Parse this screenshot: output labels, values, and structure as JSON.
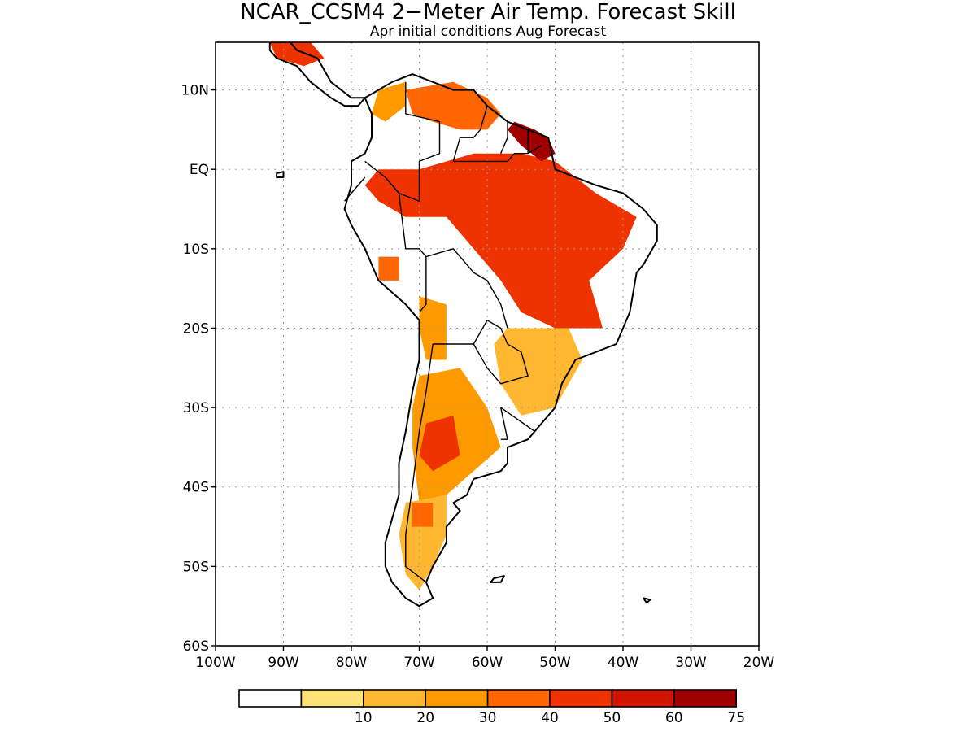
{
  "title": "NCAR_CCSM4 2−Meter Air Temp. Forecast Skill",
  "subtitle": "Apr initial conditions   Aug Forecast",
  "map": {
    "lon_range": [
      -100,
      -20
    ],
    "lat_range": [
      -60,
      16
    ],
    "lat_ticks": [
      {
        "value": 10,
        "label": "10N"
      },
      {
        "value": 0,
        "label": "EQ"
      },
      {
        "value": -10,
        "label": "10S"
      },
      {
        "value": -20,
        "label": "20S"
      },
      {
        "value": -30,
        "label": "30S"
      },
      {
        "value": -40,
        "label": "40S"
      },
      {
        "value": -50,
        "label": "50S"
      },
      {
        "value": -60,
        "label": "60S"
      }
    ],
    "lon_ticks": [
      {
        "value": -100,
        "label": "100W"
      },
      {
        "value": -90,
        "label": "90W"
      },
      {
        "value": -80,
        "label": "80W"
      },
      {
        "value": -70,
        "label": "70W"
      },
      {
        "value": -60,
        "label": "60W"
      },
      {
        "value": -50,
        "label": "50W"
      },
      {
        "value": -40,
        "label": "40W"
      },
      {
        "value": -30,
        "label": "30W"
      },
      {
        "value": -20,
        "label": "20W"
      }
    ],
    "skill_regions": [
      {
        "name": "amazon-core",
        "level": 60,
        "lonlat": [
          [
            -57,
            -4
          ],
          [
            -52,
            -2
          ],
          [
            -46,
            -4
          ],
          [
            -44,
            -10
          ],
          [
            -47,
            -14
          ],
          [
            -52,
            -13
          ],
          [
            -55,
            -17
          ],
          [
            -58,
            -12
          ],
          [
            -60,
            -8
          ]
        ]
      },
      {
        "name": "amazon-broad",
        "level": 50,
        "lonlat": [
          [
            -70,
            0
          ],
          [
            -62,
            2
          ],
          [
            -55,
            2
          ],
          [
            -50,
            1
          ],
          [
            -44,
            -3
          ],
          [
            -38,
            -6
          ],
          [
            -40,
            -10
          ],
          [
            -45,
            -14
          ],
          [
            -43,
            -20
          ],
          [
            -50,
            -20
          ],
          [
            -55,
            -18
          ],
          [
            -58,
            -14
          ],
          [
            -62,
            -10
          ],
          [
            -66,
            -6
          ],
          [
            -72,
            -6
          ],
          [
            -76,
            -4
          ],
          [
            -78,
            -2
          ],
          [
            -76,
            0
          ]
        ]
      },
      {
        "name": "guiana-north",
        "level": 75,
        "lonlat": [
          [
            -56,
            6
          ],
          [
            -53,
            5
          ],
          [
            -51,
            4
          ],
          [
            -50,
            2
          ],
          [
            -52,
            1
          ],
          [
            -55,
            3
          ],
          [
            -57,
            5
          ]
        ]
      },
      {
        "name": "north-venezuela",
        "level": 40,
        "lonlat": [
          [
            -72,
            10
          ],
          [
            -65,
            11
          ],
          [
            -60,
            9
          ],
          [
            -58,
            7
          ],
          [
            -60,
            5
          ],
          [
            -64,
            5
          ],
          [
            -68,
            6
          ],
          [
            -71,
            7
          ]
        ]
      },
      {
        "name": "caribbean-colombia",
        "level": 30,
        "lonlat": [
          [
            -76,
            10
          ],
          [
            -72,
            11
          ],
          [
            -72,
            8
          ],
          [
            -75,
            6
          ],
          [
            -77,
            7
          ]
        ]
      },
      {
        "name": "central-america",
        "level": 50,
        "lonlat": [
          [
            -92,
            16
          ],
          [
            -86,
            16
          ],
          [
            -84,
            14
          ],
          [
            -87,
            13
          ],
          [
            -91,
            14
          ]
        ]
      },
      {
        "name": "peru-patch",
        "level": 40,
        "lonlat": [
          [
            -76,
            -11
          ],
          [
            -73,
            -11
          ],
          [
            -73,
            -14
          ],
          [
            -76,
            -14
          ]
        ]
      },
      {
        "name": "bolivia-band",
        "level": 30,
        "lonlat": [
          [
            -70,
            -16
          ],
          [
            -66,
            -17
          ],
          [
            -66,
            -24
          ],
          [
            -69,
            -24
          ],
          [
            -70,
            -20
          ]
        ]
      },
      {
        "name": "brazil-south",
        "level": 20,
        "lonlat": [
          [
            -57,
            -20
          ],
          [
            -48,
            -20
          ],
          [
            -46,
            -24
          ],
          [
            -50,
            -30
          ],
          [
            -55,
            -31
          ],
          [
            -58,
            -27
          ],
          [
            -59,
            -22
          ]
        ]
      },
      {
        "name": "argentina-center",
        "level": 30,
        "lonlat": [
          [
            -70,
            -26
          ],
          [
            -64,
            -25
          ],
          [
            -60,
            -30
          ],
          [
            -58,
            -35
          ],
          [
            -62,
            -38
          ],
          [
            -66,
            -41
          ],
          [
            -70,
            -42
          ],
          [
            -71,
            -35
          ],
          [
            -71,
            -30
          ]
        ]
      },
      {
        "name": "argentina-core",
        "level": 50,
        "lonlat": [
          [
            -69,
            -32
          ],
          [
            -65,
            -31
          ],
          [
            -64,
            -36
          ],
          [
            -68,
            -38
          ],
          [
            -70,
            -36
          ]
        ]
      },
      {
        "name": "patagonia",
        "level": 20,
        "lonlat": [
          [
            -72,
            -42
          ],
          [
            -66,
            -41
          ],
          [
            -66,
            -46
          ],
          [
            -68,
            -50
          ],
          [
            -70,
            -53
          ],
          [
            -72,
            -51
          ],
          [
            -73,
            -46
          ]
        ]
      },
      {
        "name": "patagonia-core",
        "level": 40,
        "lonlat": [
          [
            -71,
            -42
          ],
          [
            -68,
            -42
          ],
          [
            -68,
            -45
          ],
          [
            -71,
            -45
          ]
        ]
      }
    ],
    "coast": [
      [
        -78,
        9
      ],
      [
        -76,
        10
      ],
      [
        -74,
        11
      ],
      [
        -71,
        12
      ],
      [
        -68,
        11
      ],
      [
        -65,
        10
      ],
      [
        -62,
        10
      ],
      [
        -60,
        8
      ],
      [
        -57,
        6
      ],
      [
        -54,
        5
      ],
      [
        -51,
        4
      ],
      [
        -50,
        0
      ],
      [
        -47,
        -1
      ],
      [
        -44,
        -2
      ],
      [
        -40,
        -3
      ],
      [
        -37,
        -5
      ],
      [
        -35,
        -7
      ],
      [
        -35,
        -9
      ],
      [
        -37,
        -12
      ],
      [
        -38,
        -13
      ],
      [
        -39,
        -18
      ],
      [
        -41,
        -22
      ],
      [
        -44,
        -23
      ],
      [
        -47,
        -24
      ],
      [
        -49,
        -27
      ],
      [
        -50,
        -30
      ],
      [
        -52,
        -32
      ],
      [
        -54,
        -34
      ],
      [
        -57,
        -35
      ],
      [
        -57,
        -37
      ],
      [
        -58,
        -38
      ],
      [
        -62,
        -39
      ],
      [
        -63,
        -41
      ],
      [
        -65,
        -42
      ],
      [
        -64,
        -43
      ],
      [
        -66,
        -45
      ],
      [
        -66,
        -47
      ],
      [
        -68,
        -50
      ],
      [
        -69,
        -52
      ],
      [
        -68,
        -54
      ],
      [
        -70,
        -55
      ],
      [
        -72,
        -54
      ],
      [
        -74,
        -52
      ],
      [
        -75,
        -50
      ],
      [
        -75,
        -47
      ],
      [
        -74,
        -44
      ],
      [
        -73,
        -41
      ],
      [
        -73,
        -37
      ],
      [
        -72,
        -33
      ],
      [
        -71,
        -28
      ],
      [
        -70,
        -24
      ],
      [
        -70,
        -19
      ],
      [
        -72,
        -17
      ],
      [
        -76,
        -14
      ],
      [
        -78,
        -10
      ],
      [
        -80,
        -7
      ],
      [
        -81,
        -5
      ],
      [
        -80,
        -2
      ],
      [
        -80,
        1
      ],
      [
        -78,
        2
      ],
      [
        -77,
        4
      ],
      [
        -77,
        7
      ],
      [
        -78,
        9
      ]
    ],
    "central_america": [
      [
        -92,
        16
      ],
      [
        -89,
        16
      ],
      [
        -88,
        15
      ],
      [
        -85,
        14
      ],
      [
        -83,
        11
      ],
      [
        -80,
        9
      ],
      [
        -78,
        9
      ],
      [
        -79,
        8
      ],
      [
        -81,
        8
      ],
      [
        -83,
        9
      ],
      [
        -86,
        11
      ],
      [
        -88,
        13
      ],
      [
        -91,
        14
      ],
      [
        -92,
        15
      ]
    ],
    "borders": [
      [
        [
          -72,
          11
        ],
        [
          -72,
          7
        ],
        [
          -67,
          6
        ],
        [
          -67,
          2
        ],
        [
          -70,
          1
        ],
        [
          -70,
          -4
        ],
        [
          -73,
          -3
        ],
        [
          -75,
          -1
        ],
        [
          -78,
          1
        ]
      ],
      [
        [
          -60,
          8
        ],
        [
          -61,
          5
        ],
        [
          -62,
          4
        ],
        [
          -64,
          4
        ],
        [
          -65,
          1
        ],
        [
          -60,
          1
        ],
        [
          -57,
          1
        ],
        [
          -56,
          2
        ],
        [
          -54,
          2
        ],
        [
          -52,
          3
        ]
      ],
      [
        [
          -57,
          6
        ],
        [
          -57,
          4
        ],
        [
          -58,
          2
        ]
      ],
      [
        [
          -54,
          5
        ],
        [
          -54,
          2
        ]
      ],
      [
        [
          -73,
          -3
        ],
        [
          -72,
          -10
        ],
        [
          -70,
          -10
        ],
        [
          -69,
          -11
        ],
        [
          -69,
          -14
        ],
        [
          -69,
          -17
        ],
        [
          -70,
          -18
        ]
      ],
      [
        [
          -69,
          -11
        ],
        [
          -65,
          -10
        ],
        [
          -62,
          -13
        ],
        [
          -60,
          -14
        ],
        [
          -58,
          -17
        ],
        [
          -57,
          -20
        ]
      ],
      [
        [
          -68,
          -22
        ],
        [
          -65,
          -22
        ],
        [
          -62,
          -22
        ],
        [
          -60,
          -19
        ],
        [
          -58,
          -20
        ],
        [
          -57,
          -22
        ],
        [
          -55,
          -23
        ],
        [
          -54,
          -26
        ],
        [
          -58,
          -27
        ],
        [
          -60,
          -25
        ],
        [
          -62,
          -22
        ]
      ],
      [
        [
          -68,
          -22
        ],
        [
          -69,
          -28
        ],
        [
          -70,
          -33
        ],
        [
          -71,
          -40
        ],
        [
          -72,
          -46
        ],
        [
          -72,
          -50
        ],
        [
          -69,
          -52
        ]
      ],
      [
        [
          -58,
          -30
        ],
        [
          -53,
          -33
        ],
        [
          -54,
          -34
        ]
      ],
      [
        [
          -58,
          -30
        ],
        [
          -57,
          -34
        ],
        [
          -58,
          -34
        ]
      ],
      [
        [
          -78,
          -1
        ],
        [
          -80,
          -3
        ],
        [
          -81,
          -4
        ]
      ]
    ],
    "islands": [
      [
        [
          -59,
          -51.5
        ],
        [
          -57.5,
          -51.2
        ],
        [
          -58,
          -52
        ],
        [
          -59.5,
          -52
        ]
      ],
      [
        [
          -37,
          -54
        ],
        [
          -36,
          -54.2
        ],
        [
          -36.5,
          -54.6
        ]
      ],
      [
        [
          -91,
          -0.5
        ],
        [
          -90,
          -0.3
        ],
        [
          -90,
          -1
        ],
        [
          -91,
          -1
        ]
      ]
    ]
  },
  "legend": {
    "bins": [
      {
        "color": "#ffffff",
        "label": ""
      },
      {
        "color": "#ffe278",
        "label": "10"
      },
      {
        "color": "#ffb732",
        "label": "20"
      },
      {
        "color": "#ff9900",
        "label": "30"
      },
      {
        "color": "#ff6600",
        "label": "40"
      },
      {
        "color": "#ee3300",
        "label": "50"
      },
      {
        "color": "#d11500",
        "label": "60"
      },
      {
        "color": "#a00000",
        "label": "75"
      }
    ]
  }
}
